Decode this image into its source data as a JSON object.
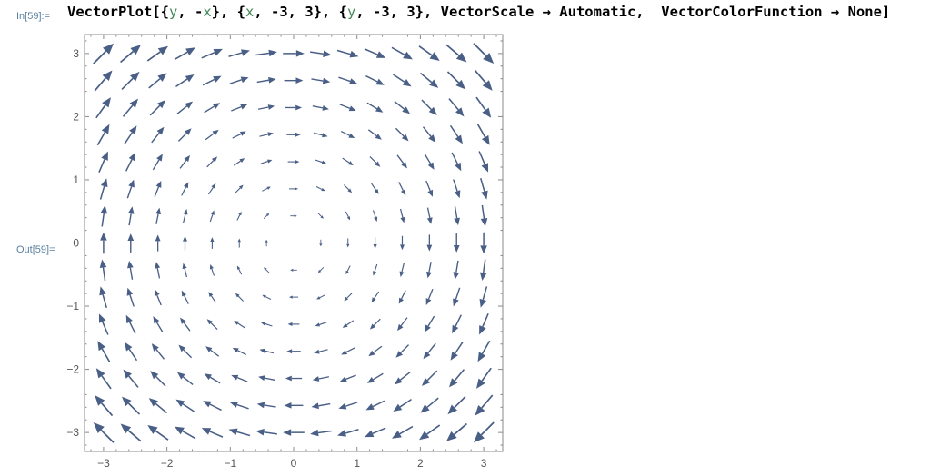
{
  "notebook": {
    "input_label": "In[59]:=",
    "output_label": "Out[59]=",
    "input_tokens": [
      {
        "t": "VectorPlot[{",
        "c": "kw"
      },
      {
        "t": "y",
        "c": "var"
      },
      {
        "t": ", -",
        "c": "kw"
      },
      {
        "t": "x",
        "c": "var"
      },
      {
        "t": "}, {",
        "c": "kw"
      },
      {
        "t": "x",
        "c": "var"
      },
      {
        "t": ", -3, 3}, {",
        "c": "kw"
      },
      {
        "t": "y",
        "c": "var"
      },
      {
        "t": ", -3, 3}, VectorScale → Automatic,  VectorColorFunction → None]",
        "c": "kw"
      }
    ]
  },
  "chart_data": {
    "type": "vector_field",
    "field": {
      "u": "y",
      "v": "-x"
    },
    "x_range": [
      -3.3,
      3.3
    ],
    "y_range": [
      -3.3,
      3.3
    ],
    "grid": {
      "x_start": -3,
      "x_end": 3,
      "y_start": -3,
      "y_end": 3,
      "n": 15
    },
    "x_ticks": [
      -3,
      -2,
      -1,
      0,
      1,
      2,
      3
    ],
    "y_ticks": [
      -3,
      -2,
      -1,
      0,
      1,
      2,
      3
    ],
    "x_tick_labels": [
      "−3",
      "−2",
      "−1",
      "0",
      "1",
      "2",
      "3"
    ],
    "y_tick_labels": [
      "−3",
      "−2",
      "−1",
      "0",
      "1",
      "2",
      "3"
    ],
    "arrow_color": "#4a5f86",
    "frame_color": "#888888",
    "legend": "none",
    "grid_lines": false
  }
}
